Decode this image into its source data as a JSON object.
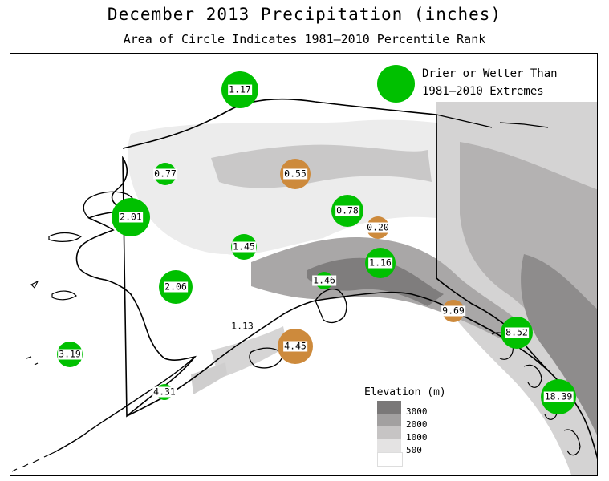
{
  "title": "December 2013 Precipitation (inches)",
  "subtitle": "Area of Circle Indicates 1981–2010 Percentile Rank",
  "legend": {
    "line1": "Drier or Wetter Than",
    "line2": "1981–2010 Extremes",
    "extreme_color": "#00c000"
  },
  "colors": {
    "wet": "#00c000",
    "dry": "#cd8a3c",
    "coast": "#000000"
  },
  "elevation_legend": {
    "title": "Elevation (m)",
    "levels": [
      {
        "label": "3000",
        "color": "#7a7878"
      },
      {
        "label": "2000",
        "color": "#a2a0a0"
      },
      {
        "label": "1000",
        "color": "#c6c4c4"
      },
      {
        "label": "500",
        "color": "#e4e3e3"
      },
      {
        "label": "",
        "color": "#ffffff"
      }
    ]
  },
  "stations": [
    {
      "value": "1.17",
      "type": "wet"
    },
    {
      "value": "0.77",
      "type": "wet"
    },
    {
      "value": "0.55",
      "type": "dry"
    },
    {
      "value": "2.01",
      "type": "wet"
    },
    {
      "value": "0.78",
      "type": "wet"
    },
    {
      "value": "0.20",
      "type": "dry"
    },
    {
      "value": "1.45",
      "type": "wet"
    },
    {
      "value": "1.16",
      "type": "wet"
    },
    {
      "value": "2.06",
      "type": "wet"
    },
    {
      "value": "1.46",
      "type": "wet"
    },
    {
      "value": "9.69",
      "type": "dry"
    },
    {
      "value": "1.13",
      "type": "none"
    },
    {
      "value": "4.45",
      "type": "dry"
    },
    {
      "value": "8.52",
      "type": "wet"
    },
    {
      "value": "3.19",
      "type": "wet"
    },
    {
      "value": "4.31",
      "type": "wet"
    },
    {
      "value": "18.39",
      "type": "wet"
    }
  ]
}
